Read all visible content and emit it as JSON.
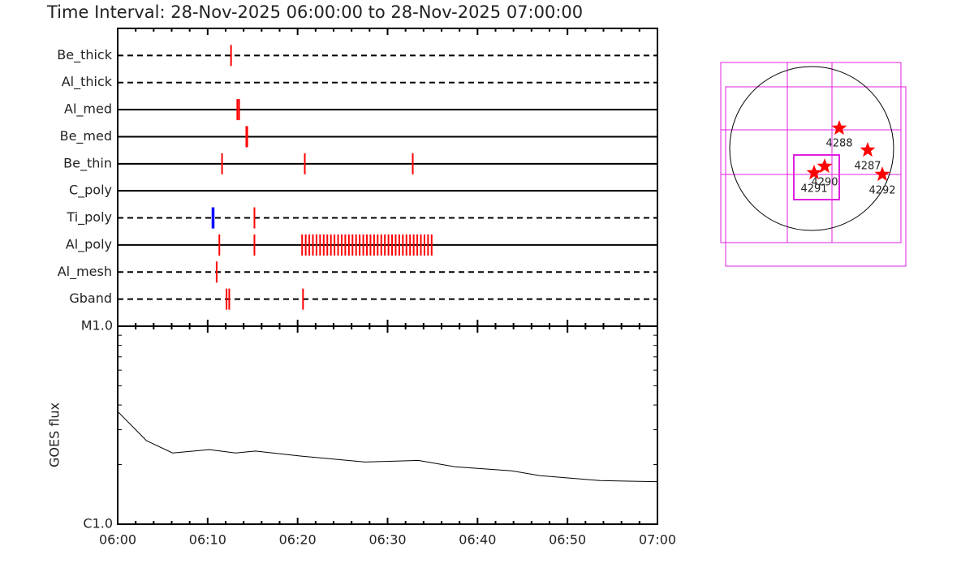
{
  "chart_data": [
    {
      "type": "timeline",
      "title": "Time Interval: 28-Nov-2025 06:00:00 to 28-Nov-2025 07:00:00",
      "xlim": [
        0,
        60
      ],
      "xticks": [
        0,
        10,
        20,
        30,
        40,
        50,
        60
      ],
      "xminor_ticks": [
        2,
        4,
        6,
        8,
        12,
        14,
        16,
        18,
        22,
        24,
        26,
        28,
        32,
        34,
        36,
        38,
        42,
        44,
        46,
        48,
        52,
        54,
        56,
        58
      ],
      "rows": [
        {
          "name": "Be_thick",
          "dashed": true,
          "events": [
            12.6
          ],
          "colors": [
            "#ff0000"
          ]
        },
        {
          "name": "Al_thick",
          "dashed": true,
          "events": [],
          "colors": []
        },
        {
          "name": "Al_med",
          "dashed": false,
          "events": [
            13.3,
            13.5
          ],
          "colors": [
            "#ff0000",
            "#ff0000"
          ]
        },
        {
          "name": "Be_med",
          "dashed": false,
          "events": [
            14.3,
            14.4
          ],
          "colors": [
            "#ff0000",
            "#ff0000"
          ]
        },
        {
          "name": "Be_thin",
          "dashed": false,
          "events": [
            11.6,
            20.8,
            32.8
          ],
          "colors": [
            "#ff0000",
            "#ff0000",
            "#ff0000"
          ]
        },
        {
          "name": "C_poly",
          "dashed": false,
          "events": [],
          "colors": []
        },
        {
          "name": "Ti_poly",
          "dashed": true,
          "events": [
            10.6,
            15.2
          ],
          "colors": [
            "#0000ff",
            "#ff0000"
          ]
        },
        {
          "name": "Al_poly",
          "dashed": false,
          "events": [
            11.3,
            15.2,
            20.5,
            20.9,
            21.3,
            21.7,
            22.1,
            22.5,
            22.9,
            23.3,
            23.7,
            24.1,
            24.5,
            24.9,
            25.3,
            25.7,
            26.1,
            26.5,
            26.9,
            27.3,
            27.7,
            28.1,
            28.5,
            28.9,
            29.3,
            29.7,
            30.1,
            30.5,
            30.9,
            31.3,
            31.7,
            32.1,
            32.5,
            32.9,
            33.3,
            33.7,
            34.1,
            34.5,
            34.9
          ],
          "colors": [
            "#ff0000",
            "#ff0000",
            "#ff0000",
            "#ff0000",
            "#ff0000",
            "#ff0000",
            "#ff0000",
            "#ff0000",
            "#ff0000",
            "#ff0000",
            "#ff0000",
            "#ff0000",
            "#ff0000",
            "#ff0000",
            "#ff0000",
            "#ff0000",
            "#ff0000",
            "#ff0000",
            "#ff0000",
            "#ff0000",
            "#ff0000",
            "#ff0000",
            "#ff0000",
            "#ff0000",
            "#ff0000",
            "#ff0000",
            "#ff0000",
            "#ff0000",
            "#ff0000",
            "#ff0000",
            "#ff0000",
            "#ff0000",
            "#ff0000",
            "#ff0000",
            "#ff0000",
            "#ff0000",
            "#ff0000",
            "#ff0000",
            "#ff0000"
          ]
        },
        {
          "name": "Al_mesh",
          "dashed": true,
          "events": [
            11.0
          ],
          "colors": [
            "#ff0000"
          ]
        },
        {
          "name": "Gband",
          "dashed": true,
          "events": [
            12.1,
            12.4,
            20.6
          ],
          "colors": [
            "#ff0000",
            "#ff0000",
            "#ff0000"
          ]
        }
      ]
    },
    {
      "type": "line",
      "ylabel": "GOES flux",
      "log_y": true,
      "color": "#000000",
      "xlim": [
        0,
        60
      ],
      "xticks": [
        {
          "value": 0,
          "label": "06:00"
        },
        {
          "value": 10,
          "label": "06:10"
        },
        {
          "value": 20,
          "label": "06:20"
        },
        {
          "value": 30,
          "label": "06:30"
        },
        {
          "value": 40,
          "label": "06:40"
        },
        {
          "value": 50,
          "label": "06:50"
        },
        {
          "value": 60,
          "label": "07:00"
        }
      ],
      "xminor_ticks": [
        2,
        4,
        6,
        8,
        12,
        14,
        16,
        18,
        22,
        24,
        26,
        28,
        32,
        34,
        36,
        38,
        42,
        44,
        46,
        48,
        52,
        54,
        56,
        58
      ],
      "ylim": [
        1e-06,
        1e-05
      ],
      "yticks": [
        {
          "value": 1e-06,
          "label": "C1.0"
        },
        {
          "value": 1e-05,
          "label": "M1.0"
        }
      ],
      "yminor_ticks": [
        2e-06,
        3e-06,
        4e-06,
        5e-06,
        6e-06,
        7e-06,
        8e-06,
        9e-06
      ],
      "x": [
        0,
        3.2,
        6.1,
        10.2,
        13.1,
        15.3,
        20.3,
        27.5,
        33.4,
        37.5,
        43.8,
        46.9,
        53.6,
        59.8,
        60
      ],
      "values": [
        3.71e-06,
        2.64e-06,
        2.29e-06,
        2.38e-06,
        2.29e-06,
        2.34e-06,
        2.21e-06,
        2.06e-06,
        2.1e-06,
        1.95e-06,
        1.86e-06,
        1.76e-06,
        1.66e-06,
        1.64e-06,
        1.64e-06
      ]
    },
    {
      "type": "map",
      "regions": [
        "4288",
        "4287",
        "4290",
        "4291",
        "4292"
      ]
    }
  ]
}
